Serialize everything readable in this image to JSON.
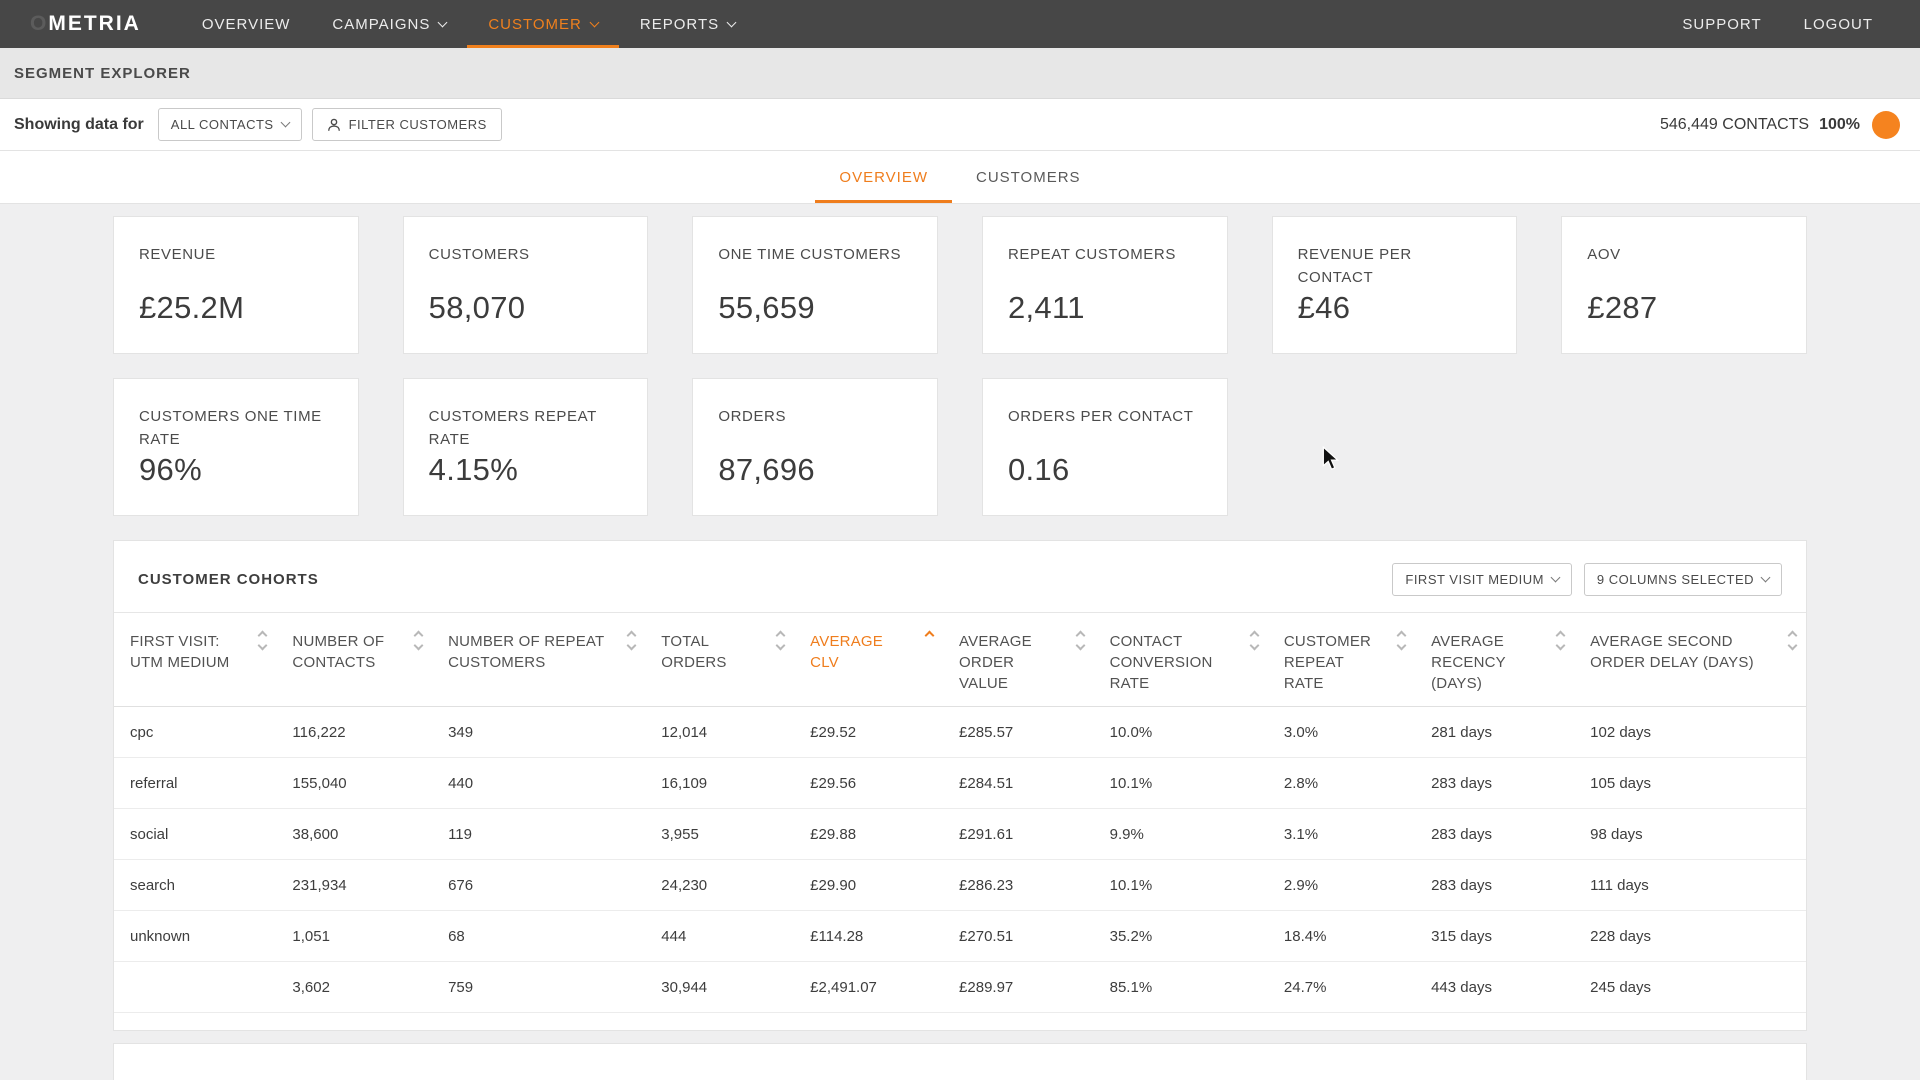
{
  "nav": {
    "brand": "OMETRIA",
    "items": [
      {
        "label": "OVERVIEW",
        "active": false
      },
      {
        "label": "CAMPAIGNS",
        "active": false
      },
      {
        "label": "CUSTOMER",
        "active": true
      },
      {
        "label": "REPORTS",
        "active": false
      }
    ],
    "right_items": [
      {
        "label": "SUPPORT"
      },
      {
        "label": "LOGOUT"
      }
    ]
  },
  "subheader": {
    "title": "SEGMENT EXPLORER"
  },
  "filter_bar": {
    "prefix_label": "Showing data for",
    "segment_dropdown": "ALL CONTACTS",
    "filter_button": "FILTER CUSTOMERS",
    "contacts_count": "546,449 CONTACTS",
    "contacts_percent": "100%"
  },
  "tabs": [
    {
      "label": "OVERVIEW",
      "active": true
    },
    {
      "label": "CUSTOMERS",
      "active": false
    }
  ],
  "kpi_rows": [
    [
      {
        "label": "REVENUE",
        "value": "£25.2M"
      },
      {
        "label": "CUSTOMERS",
        "value": "58,070"
      },
      {
        "label": "ONE TIME CUSTOMERS",
        "value": "55,659"
      },
      {
        "label": "REPEAT CUSTOMERS",
        "value": "2,411"
      },
      {
        "label": "REVENUE PER CONTACT",
        "value": "£46"
      },
      {
        "label": "AOV",
        "value": "£287"
      }
    ],
    [
      {
        "label": "CUSTOMERS ONE TIME RATE",
        "value": "96%"
      },
      {
        "label": "CUSTOMERS REPEAT RATE",
        "value": "4.15%"
      },
      {
        "label": "ORDERS",
        "value": "87,696"
      },
      {
        "label": "ORDERS PER CONTACT",
        "value": "0.16"
      }
    ]
  ],
  "cohorts": {
    "title": "CUSTOMER COHORTS",
    "dimension_dropdown": "FIRST VISIT MEDIUM",
    "columns_dropdown": "9 COLUMNS SELECTED",
    "table": {
      "columns": [
        {
          "label": "FIRST VISIT: UTM MEDIUM",
          "sort": "none"
        },
        {
          "label": "NUMBER OF CONTACTS",
          "sort": "none"
        },
        {
          "label": "NUMBER OF REPEAT CUSTOMERS",
          "sort": "none"
        },
        {
          "label": "TOTAL ORDERS",
          "sort": "none"
        },
        {
          "label": "AVERAGE CLV",
          "sort": "asc"
        },
        {
          "label": "AVERAGE ORDER VALUE",
          "sort": "none"
        },
        {
          "label": "CONTACT CONVERSION RATE",
          "sort": "none"
        },
        {
          "label": "CUSTOMER REPEAT RATE",
          "sort": "none"
        },
        {
          "label": "AVERAGE RECENCY (DAYS)",
          "sort": "none"
        },
        {
          "label": "AVERAGE SECOND ORDER DELAY (DAYS)",
          "sort": "none"
        }
      ],
      "rows": [
        [
          "cpc",
          "116,222",
          "349",
          "12,014",
          "£29.52",
          "£285.57",
          "10.0%",
          "3.0%",
          "281 days",
          "102 days"
        ],
        [
          "referral",
          "155,040",
          "440",
          "16,109",
          "£29.56",
          "£284.51",
          "10.1%",
          "2.8%",
          "283 days",
          "105 days"
        ],
        [
          "social",
          "38,600",
          "119",
          "3,955",
          "£29.88",
          "£291.61",
          "9.9%",
          "3.1%",
          "283 days",
          "98 days"
        ],
        [
          "search",
          "231,934",
          "676",
          "24,230",
          "£29.90",
          "£286.23",
          "10.1%",
          "2.9%",
          "283 days",
          "111 days"
        ],
        [
          "unknown",
          "1,051",
          "68",
          "444",
          "£114.28",
          "£270.51",
          "35.2%",
          "18.4%",
          "315 days",
          "228 days"
        ],
        [
          "",
          "3,602",
          "759",
          "30,944",
          "£2,491.07",
          "£289.97",
          "85.1%",
          "24.7%",
          "443 days",
          "245 days"
        ]
      ]
    }
  },
  "colors": {
    "accent_orange": "#f0801d",
    "nav_background": "#474747",
    "page_background": "#efeff0"
  }
}
